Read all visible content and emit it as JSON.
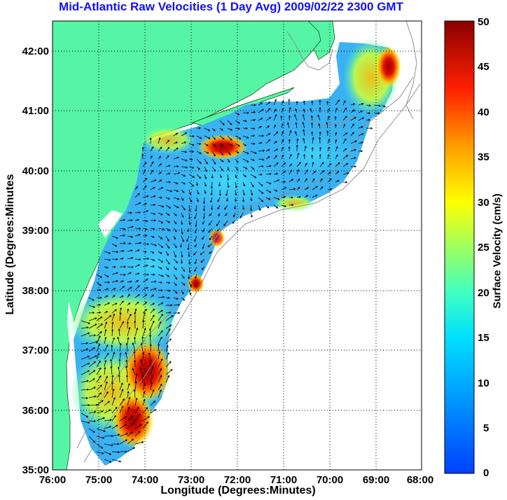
{
  "title": "Mid-Atlantic Raw Velocities (1 Day Avg) 2009/02/22 2300 GMT",
  "xlabel": "Longitude (Degrees:Minutes)",
  "ylabel": "Latitude (Degrees:Minutes",
  "colorbar_label": "Surface Velocity (cm/s)",
  "x_ticks": [
    "76:00",
    "75:00",
    "74:00",
    "73:00",
    "72:00",
    "71:00",
    "70:00",
    "69:00",
    "68:00"
  ],
  "y_ticks": [
    "42:00",
    "41:00",
    "40:00",
    "39:00",
    "38:00",
    "37:00",
    "36:00",
    "35:00"
  ],
  "colorbar_ticks": [
    "50",
    "45",
    "40",
    "35",
    "30",
    "25",
    "20",
    "15",
    "10",
    "5",
    "0"
  ],
  "colors": {
    "land": "#55f5a5",
    "title": "#1010ff",
    "grid": "#000000",
    "bathymetry": "#909090"
  },
  "map": {
    "lon_range": [
      -76,
      -68
    ],
    "lat_range": [
      35,
      42.5
    ],
    "grid": true,
    "colormap": "jet",
    "value_range_cm_s": [
      0,
      50
    ]
  }
}
